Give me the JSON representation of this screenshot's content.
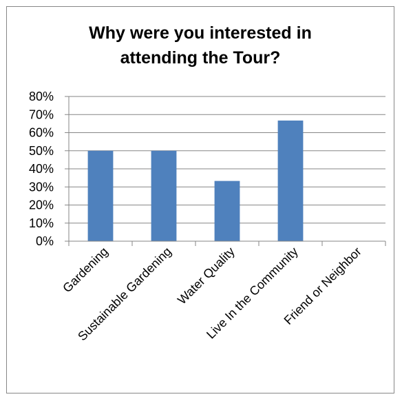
{
  "chart_data": {
    "type": "bar",
    "title_lines": [
      "Why were you interested in",
      "attending the Tour?"
    ],
    "categories": [
      "Gardening",
      "Sustainable Gardening",
      "Water Quality",
      "Live In the  Community",
      "Friend or Neighbor"
    ],
    "values": [
      50,
      50,
      33.3,
      66.7,
      0
    ],
    "ylim": [
      0,
      80
    ],
    "yticks": [
      0,
      10,
      20,
      30,
      40,
      50,
      60,
      70,
      80
    ],
    "ytick_suffix": "%",
    "grid": true,
    "legend": "none",
    "bar_color": "#4F81BD",
    "grid_color": "#868686"
  }
}
